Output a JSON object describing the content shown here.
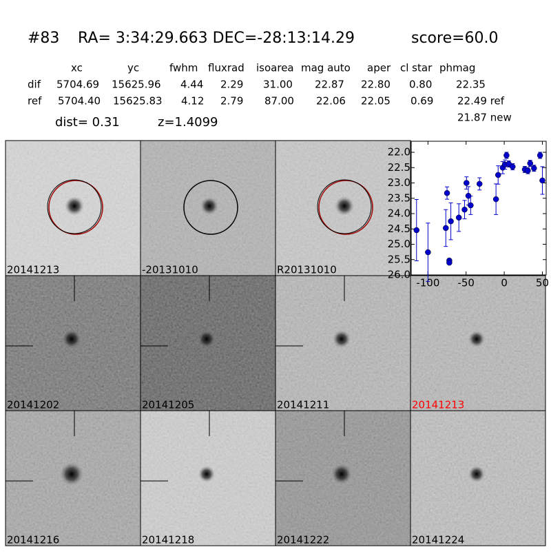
{
  "header": {
    "id": "#83",
    "coords": "RA= 3:34:29.663 DEC=-28:13:14.29",
    "score": "score=60.0",
    "dist": "dist=  0.31",
    "z": "z=1.4099"
  },
  "table": {
    "columns": [
      "xc",
      "yc",
      "fwhm",
      "fluxrad",
      "isoarea",
      "mag auto",
      "aper",
      "cl star",
      "phmag"
    ],
    "rows": [
      [
        "dif",
        "5704.69",
        "15625.96",
        "4.44",
        "2.29",
        "31.00",
        "22.87",
        "22.80",
        "0.80",
        "22.35"
      ],
      [
        "ref",
        "5704.40",
        "15625.83",
        "4.12",
        "2.79",
        "87.00",
        "22.06",
        "22.05",
        "0.69",
        "22.49 ref"
      ]
    ],
    "extra": "21.87 new"
  },
  "stamps": [
    {
      "label": "20141213",
      "circle_color": "#a00000"
    },
    {
      "label": "-20131010",
      "circle_color": "#000000"
    },
    {
      "label": "R20131010",
      "circle_color": "#a00000"
    },
    {
      "label": "20141202"
    },
    {
      "label": "20141205"
    },
    {
      "label": "20141211"
    },
    {
      "label": "20141213",
      "label_color": "#ff0000"
    },
    {
      "label": "20141216"
    },
    {
      "label": "20141218"
    },
    {
      "label": "20141222"
    },
    {
      "label": "20141224"
    }
  ],
  "chart_data": {
    "type": "scatter",
    "color": "#0000cc",
    "x": [
      -115,
      -100,
      -76.6,
      -75,
      -72,
      -72,
      -70,
      -59.5,
      -52,
      -49.5,
      -47,
      -44,
      -32.4,
      -10.8,
      -8,
      -2,
      1,
      3,
      6,
      11,
      27,
      31,
      34,
      39,
      47,
      50
    ],
    "values": [
      24.54,
      25.26,
      24.47,
      23.33,
      25.53,
      25.6,
      24.25,
      24.13,
      23.87,
      23.0,
      23.42,
      23.73,
      23.03,
      23.53,
      22.74,
      22.5,
      22.4,
      22.1,
      22.38,
      22.47,
      22.56,
      22.6,
      22.36,
      22.52,
      22.1,
      22.92
    ],
    "errors": [
      1.0,
      0.95,
      0.6,
      0.2,
      0.05,
      0.05,
      0.6,
      0.45,
      0.3,
      0.2,
      0.3,
      0.3,
      0.2,
      0.5,
      0.3,
      0.2,
      0.15,
      0.1,
      0.1,
      0.1,
      0.1,
      0.1,
      0.1,
      0.1,
      0.1,
      0.45
    ],
    "xlim": [
      -122,
      55
    ],
    "ylim": [
      26.0,
      21.64
    ],
    "xticks": [
      -100,
      -50,
      0,
      50
    ],
    "yticks": [
      {
        "value": 22,
        "label": "22.0"
      },
      22.5,
      {
        "value": 23,
        "label": "23.0"
      },
      23.5,
      {
        "value": 24,
        "label": "24.0"
      },
      24.5,
      {
        "value": 25,
        "label": "25.0"
      },
      25.5,
      {
        "value": 26,
        "label": "26.0"
      }
    ]
  }
}
